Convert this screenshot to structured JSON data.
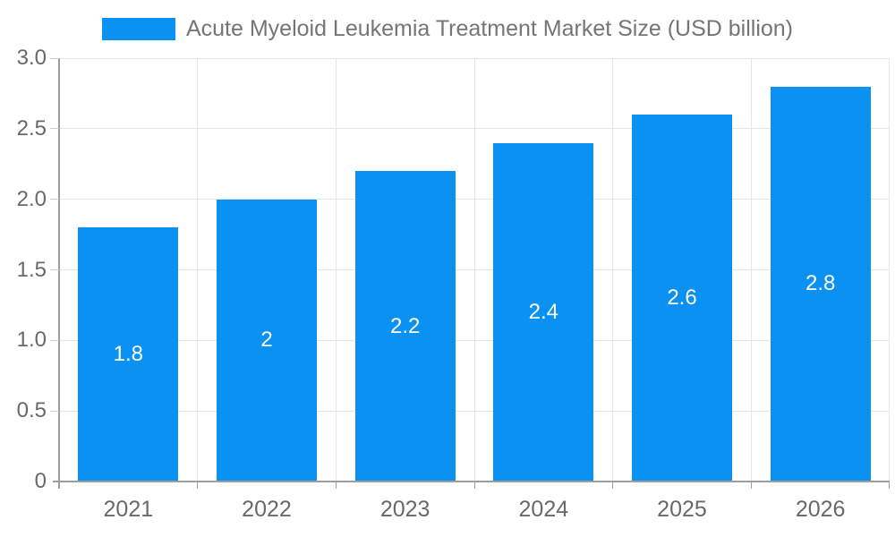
{
  "legend": {
    "label": "Acute Myeloid Leukemia Treatment Market Size (USD billion)"
  },
  "colors": {
    "bar": "#0a91f2",
    "grid": "#e6e6e6",
    "axis": "#9e9e9e",
    "y_tick": "#cccccc",
    "axis_text": "#696969",
    "legend_text": "#757575",
    "bar_label_text": "#ffffff",
    "background": "#ffffff"
  },
  "chart_data": {
    "type": "bar",
    "title": "Acute Myeloid Leukemia Treatment Market Size (USD billion)",
    "categories": [
      "2021",
      "2022",
      "2023",
      "2024",
      "2025",
      "2026"
    ],
    "values": [
      1.8,
      2,
      2.2,
      2.4,
      2.6,
      2.8
    ],
    "bar_labels": [
      "1.8",
      "2",
      "2.2",
      "2.4",
      "2.6",
      "2.8"
    ],
    "series": [
      {
        "name": "Acute Myeloid Leukemia Treatment Market Size (USD billion)",
        "values": [
          1.8,
          2,
          2.2,
          2.4,
          2.6,
          2.8
        ]
      }
    ],
    "xlabel": "",
    "ylabel": "",
    "ylim": [
      0,
      3
    ],
    "yticks": [
      0,
      0.5,
      1,
      1.5,
      2,
      2.5,
      3
    ],
    "ytick_labels": [
      "0",
      "0.5",
      "1.0",
      "1.5",
      "2.0",
      "2.5",
      "3.0"
    ],
    "grid": "on",
    "legend_position": "top-center",
    "value_label_position": "inside-center"
  }
}
